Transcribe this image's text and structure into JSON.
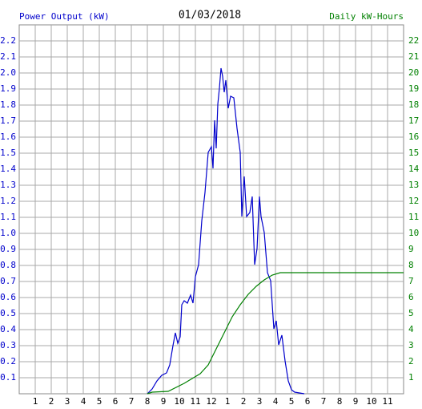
{
  "chart_data": {
    "type": "line",
    "title": "01/03/2018",
    "ylabel": "Power Output (kW)",
    "y2label": "Daily kW-Hours",
    "xlim": [
      0,
      24
    ],
    "xticks": [
      {
        "value": 1,
        "label": "1"
      },
      {
        "value": 2,
        "label": "2"
      },
      {
        "value": 3,
        "label": "3"
      },
      {
        "value": 4,
        "label": "4"
      },
      {
        "value": 5,
        "label": "5"
      },
      {
        "value": 6,
        "label": "6"
      },
      {
        "value": 7,
        "label": "7"
      },
      {
        "value": 8,
        "label": "8"
      },
      {
        "value": 9,
        "label": "9"
      },
      {
        "value": 10,
        "label": "10"
      },
      {
        "value": 11,
        "label": "11"
      },
      {
        "value": 12,
        "label": "12"
      },
      {
        "value": 13,
        "label": "1"
      },
      {
        "value": 14,
        "label": "2"
      },
      {
        "value": 15,
        "label": "3"
      },
      {
        "value": 16,
        "label": "4"
      },
      {
        "value": 17,
        "label": "5"
      },
      {
        "value": 18,
        "label": "6"
      },
      {
        "value": 19,
        "label": "7"
      },
      {
        "value": 20,
        "label": "8"
      },
      {
        "value": 21,
        "label": "9"
      },
      {
        "value": 22,
        "label": "10"
      },
      {
        "value": 23,
        "label": "11"
      }
    ],
    "ylim": [
      0,
      2.3
    ],
    "yticks": [
      0.1,
      0.2,
      0.3,
      0.4,
      0.5,
      0.6,
      0.7,
      0.8,
      0.9,
      {
        "value": 1.0,
        "label": "1.0"
      },
      1.1,
      1.2,
      1.3,
      1.4,
      1.5,
      1.6,
      1.7,
      1.8,
      1.9,
      {
        "value": 2.0,
        "label": "2.0"
      },
      2.1,
      2.2
    ],
    "y2lim": [
      0,
      23
    ],
    "y2ticks": [
      1,
      2,
      3,
      4,
      5,
      6,
      7,
      8,
      9,
      10,
      11,
      12,
      13,
      14,
      15,
      16,
      17,
      18,
      19,
      20,
      21,
      22
    ],
    "grid": true,
    "ylabel_color": "#0000cc",
    "y2label_color": "#008000",
    "series": [
      {
        "color": "#0000cc",
        "x": [
          8.0,
          8.3,
          8.6,
          8.9,
          9.2,
          9.4,
          9.6,
          9.75,
          9.9,
          10.05,
          10.15,
          10.3,
          10.5,
          10.7,
          10.85,
          11.0,
          11.2,
          11.4,
          11.6,
          11.8,
          12.0,
          12.1,
          12.2,
          12.3,
          12.4,
          12.5,
          12.6,
          12.7,
          12.8,
          12.9,
          13.05,
          13.2,
          13.4,
          13.6,
          13.8,
          13.9,
          14.05,
          14.2,
          14.4,
          14.55,
          14.7,
          14.85,
          15.0,
          15.1,
          15.3,
          15.5,
          15.7,
          15.9,
          16.05,
          16.2,
          16.4,
          16.6,
          16.8,
          17.0,
          17.2,
          17.8
        ],
        "values": [
          0,
          0.03,
          0.08,
          0.115,
          0.13,
          0.18,
          0.3,
          0.38,
          0.315,
          0.355,
          0.555,
          0.58,
          0.565,
          0.615,
          0.565,
          0.73,
          0.805,
          1.08,
          1.255,
          1.505,
          1.54,
          1.405,
          1.705,
          1.53,
          1.805,
          1.905,
          2.03,
          1.98,
          1.88,
          1.955,
          1.78,
          1.855,
          1.845,
          1.655,
          1.505,
          1.105,
          1.355,
          1.105,
          1.13,
          1.23,
          0.805,
          0.905,
          1.23,
          1.105,
          1.005,
          0.755,
          0.705,
          0.405,
          0.455,
          0.305,
          0.365,
          0.205,
          0.08,
          0.025,
          0.01,
          0
        ]
      },
      {
        "color": "#008000",
        "axis": "y2",
        "x": [
          8.0,
          8.3,
          9.3,
          10.3,
          11.3,
          11.8,
          12.3,
          12.8,
          13.3,
          13.8,
          14.3,
          14.8,
          15.3,
          15.8,
          16.3,
          16.8,
          24
        ],
        "values": [
          0,
          0.1,
          0.15,
          0.65,
          1.25,
          1.8,
          2.8,
          3.8,
          4.8,
          5.55,
          6.2,
          6.7,
          7.1,
          7.4,
          7.55,
          7.55,
          7.55
        ]
      }
    ]
  }
}
